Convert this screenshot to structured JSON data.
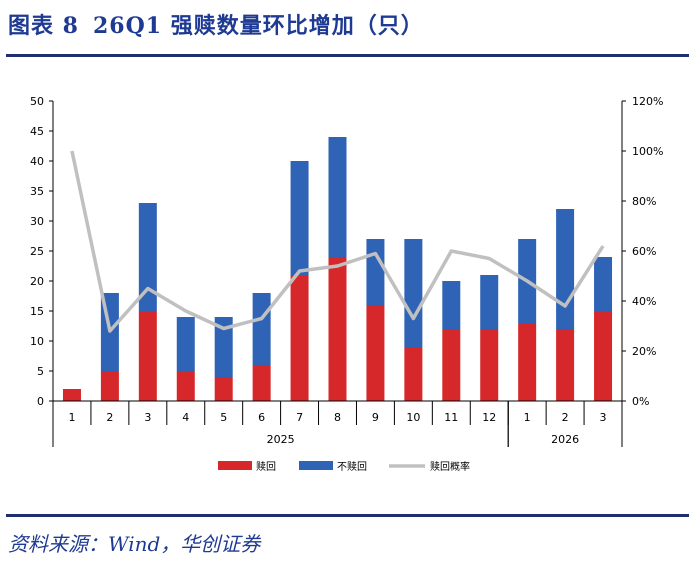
{
  "figure": {
    "label": "图表 8",
    "title": "26Q1 强赎数量环比增加（只）"
  },
  "source": "资料来源：Wind，华创证券",
  "chart_data": {
    "type": "bar",
    "stacked": true,
    "categories": [
      "1",
      "2",
      "3",
      "4",
      "5",
      "6",
      "7",
      "8",
      "9",
      "10",
      "11",
      "12",
      "1",
      "2",
      "3"
    ],
    "year_groups": [
      {
        "label": "2025",
        "start": 0,
        "end": 11
      },
      {
        "label": "2026",
        "start": 12,
        "end": 14
      }
    ],
    "series": [
      {
        "name": "赎回",
        "color": "#d6282a",
        "axis": "left",
        "values": [
          2,
          5,
          15,
          5,
          4,
          6,
          21,
          24,
          16,
          9,
          12,
          12,
          13,
          12,
          15
        ]
      },
      {
        "name": "不赎回",
        "color": "#2f63b5",
        "axis": "left",
        "values": [
          0,
          13,
          18,
          9,
          10,
          12,
          19,
          20,
          11,
          18,
          8,
          9,
          14,
          20,
          9
        ]
      },
      {
        "name": "赎回概率",
        "color": "#c0c0c0",
        "type": "line",
        "axis": "right",
        "values": [
          100,
          28,
          45,
          36,
          29,
          33,
          52,
          54,
          59,
          33,
          60,
          57,
          48,
          38,
          62
        ]
      }
    ],
    "y_left": {
      "min": 0,
      "max": 50,
      "step": 5,
      "ticks": [
        "0",
        "5",
        "10",
        "15",
        "20",
        "25",
        "30",
        "35",
        "40",
        "45",
        "50"
      ]
    },
    "y_right": {
      "min": 0,
      "max": 120,
      "step": 20,
      "ticks": [
        "0%",
        "20%",
        "40%",
        "60%",
        "80%",
        "100%",
        "120%"
      ]
    },
    "legend_position": "bottom",
    "grid": false
  }
}
